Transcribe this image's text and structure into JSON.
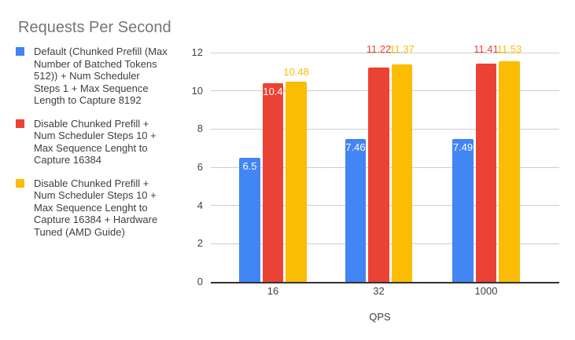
{
  "title": "Requests Per Second",
  "legend": {
    "position": "left",
    "items": [
      {
        "color": "#4285F4",
        "lines": [
          "Default (Chunked Prefill (Max",
          "Number of Batched Tokens",
          "512)) + Num Scheduler",
          "Steps 1 + Max Sequence",
          "Length to Capture 8192"
        ]
      },
      {
        "color": "#EA4335",
        "lines": [
          "Disable Chunked Prefill +",
          "Num Scheduler Steps 10 +",
          "Max Sequence Lenght to",
          "Capture 16384"
        ]
      },
      {
        "color": "#FBBC04",
        "lines": [
          "Disable Chunked Prefill +",
          "Num Scheduler Steps 10 +",
          "Max Sequence Lenght to",
          "Capture 16384 + Hardware",
          "Tuned (AMD Guide)"
        ]
      }
    ]
  },
  "chart_data": {
    "type": "bar",
    "title": "Requests Per Second",
    "categories": [
      "16",
      "32",
      "1000"
    ],
    "series": [
      {
        "name": "Default (Chunked Prefill (Max Number of Batched Tokens 512)) + Num Scheduler Steps 1 + Max Sequence Length to Capture 8192",
        "color": "#4285F4",
        "values": [
          6.5,
          7.46,
          7.49
        ],
        "labels": [
          "6.5",
          "7.46",
          "7.49"
        ],
        "label_placements": [
          "inside",
          "inside",
          "inside"
        ]
      },
      {
        "name": "Disable Chunked Prefill + Num Scheduler Steps 10 + Max Sequence Lenght to Capture 16384",
        "color": "#EA4335",
        "values": [
          10.4,
          11.22,
          11.41
        ],
        "labels": [
          "10.4",
          "11.22",
          "11.41"
        ],
        "label_placements": [
          "inside",
          "above",
          "above"
        ]
      },
      {
        "name": "Disable Chunked Prefill + Num Scheduler Steps 10 + Max Sequence Lenght to Capture 16384 + Hardware Tuned (AMD Guide)",
        "color": "#FBBC04",
        "values": [
          10.48,
          11.37,
          11.53
        ],
        "labels": [
          "10.48",
          "11.37",
          "11.53"
        ],
        "label_placements": [
          "above",
          "above",
          "above"
        ]
      }
    ],
    "xlabel": "QPS",
    "ylabel": "",
    "ylim": [
      0,
      12
    ],
    "yticks": [
      0,
      2,
      4,
      6,
      8,
      10,
      12
    ],
    "grid": true,
    "legend_position": "left",
    "colors": {
      "title_text": "#757575",
      "legend_text": "#3c4043",
      "axis_text": "#424242",
      "gridline": "#cccccc",
      "axis_baseline": "#333333",
      "inside_label_text": "#ffffff",
      "background": "#ffffff"
    }
  }
}
